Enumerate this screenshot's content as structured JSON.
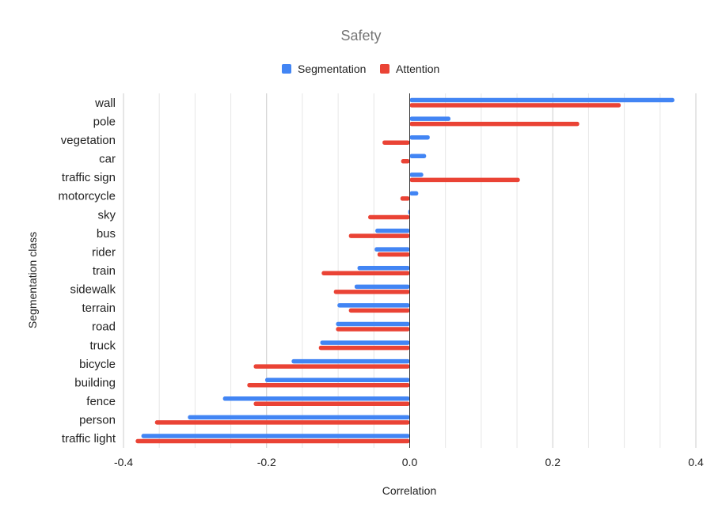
{
  "chart_data": {
    "type": "bar",
    "orientation": "horizontal",
    "title": "Safety",
    "xlabel": "Correlation",
    "ylabel": "Segmentation class",
    "xlim": [
      -0.4,
      0.4
    ],
    "x_ticks": [
      -0.4,
      -0.2,
      0.0,
      0.2,
      0.4
    ],
    "x_tick_labels": [
      "-0.4",
      "-0.2",
      "0.0",
      "0.2",
      "0.4"
    ],
    "grid": true,
    "legend_position": "top",
    "categories": [
      "wall",
      "pole",
      "vegetation",
      "car",
      "traffic sign",
      "motorcycle",
      "sky",
      "bus",
      "rider",
      "train",
      "sidewalk",
      "terrain",
      "road",
      "truck",
      "bicycle",
      "building",
      "fence",
      "person",
      "traffic light"
    ],
    "series": [
      {
        "name": "Segmentation",
        "color": "#4285f4",
        "values": [
          0.37,
          0.057,
          0.028,
          0.023,
          0.019,
          0.012,
          -0.002,
          -0.048,
          -0.049,
          -0.073,
          -0.077,
          -0.101,
          -0.103,
          -0.125,
          -0.165,
          -0.202,
          -0.261,
          -0.31,
          -0.375
        ]
      },
      {
        "name": "Attention",
        "color": "#ea4335",
        "values": [
          0.295,
          0.237,
          -0.038,
          -0.012,
          0.154,
          -0.013,
          -0.058,
          -0.085,
          -0.045,
          -0.123,
          -0.106,
          -0.085,
          -0.103,
          -0.127,
          -0.218,
          -0.227,
          -0.218,
          -0.356,
          -0.383
        ]
      }
    ]
  }
}
